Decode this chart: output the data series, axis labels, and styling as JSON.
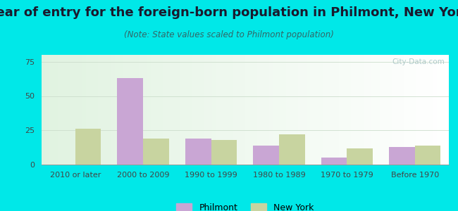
{
  "title": "Year of entry for the foreign-born population in Philmont, New York",
  "subtitle": "(Note: State values scaled to Philmont population)",
  "categories": [
    "2010 or later",
    "2000 to 2009",
    "1990 to 1999",
    "1980 to 1989",
    "1970 to 1979",
    "Before 1970"
  ],
  "philmont": [
    0,
    63,
    19,
    14,
    5,
    13
  ],
  "new_york": [
    26,
    19,
    18,
    22,
    12,
    14
  ],
  "philmont_color": "#c9a6d4",
  "new_york_color": "#c8d4a0",
  "background_outer": "#00e8e8",
  "title_color": "#1a1a2e",
  "subtitle_color": "#336666",
  "tick_color": "#444444",
  "grid_color": "#ccddcc",
  "ylim": [
    0,
    80
  ],
  "yticks": [
    0,
    25,
    50,
    75
  ],
  "bar_width": 0.38,
  "legend_philmont": "Philmont",
  "legend_new_york": "New York",
  "title_fontsize": 13,
  "subtitle_fontsize": 8.5,
  "tick_fontsize": 8,
  "legend_fontsize": 9,
  "watermark": "City-Data.com"
}
